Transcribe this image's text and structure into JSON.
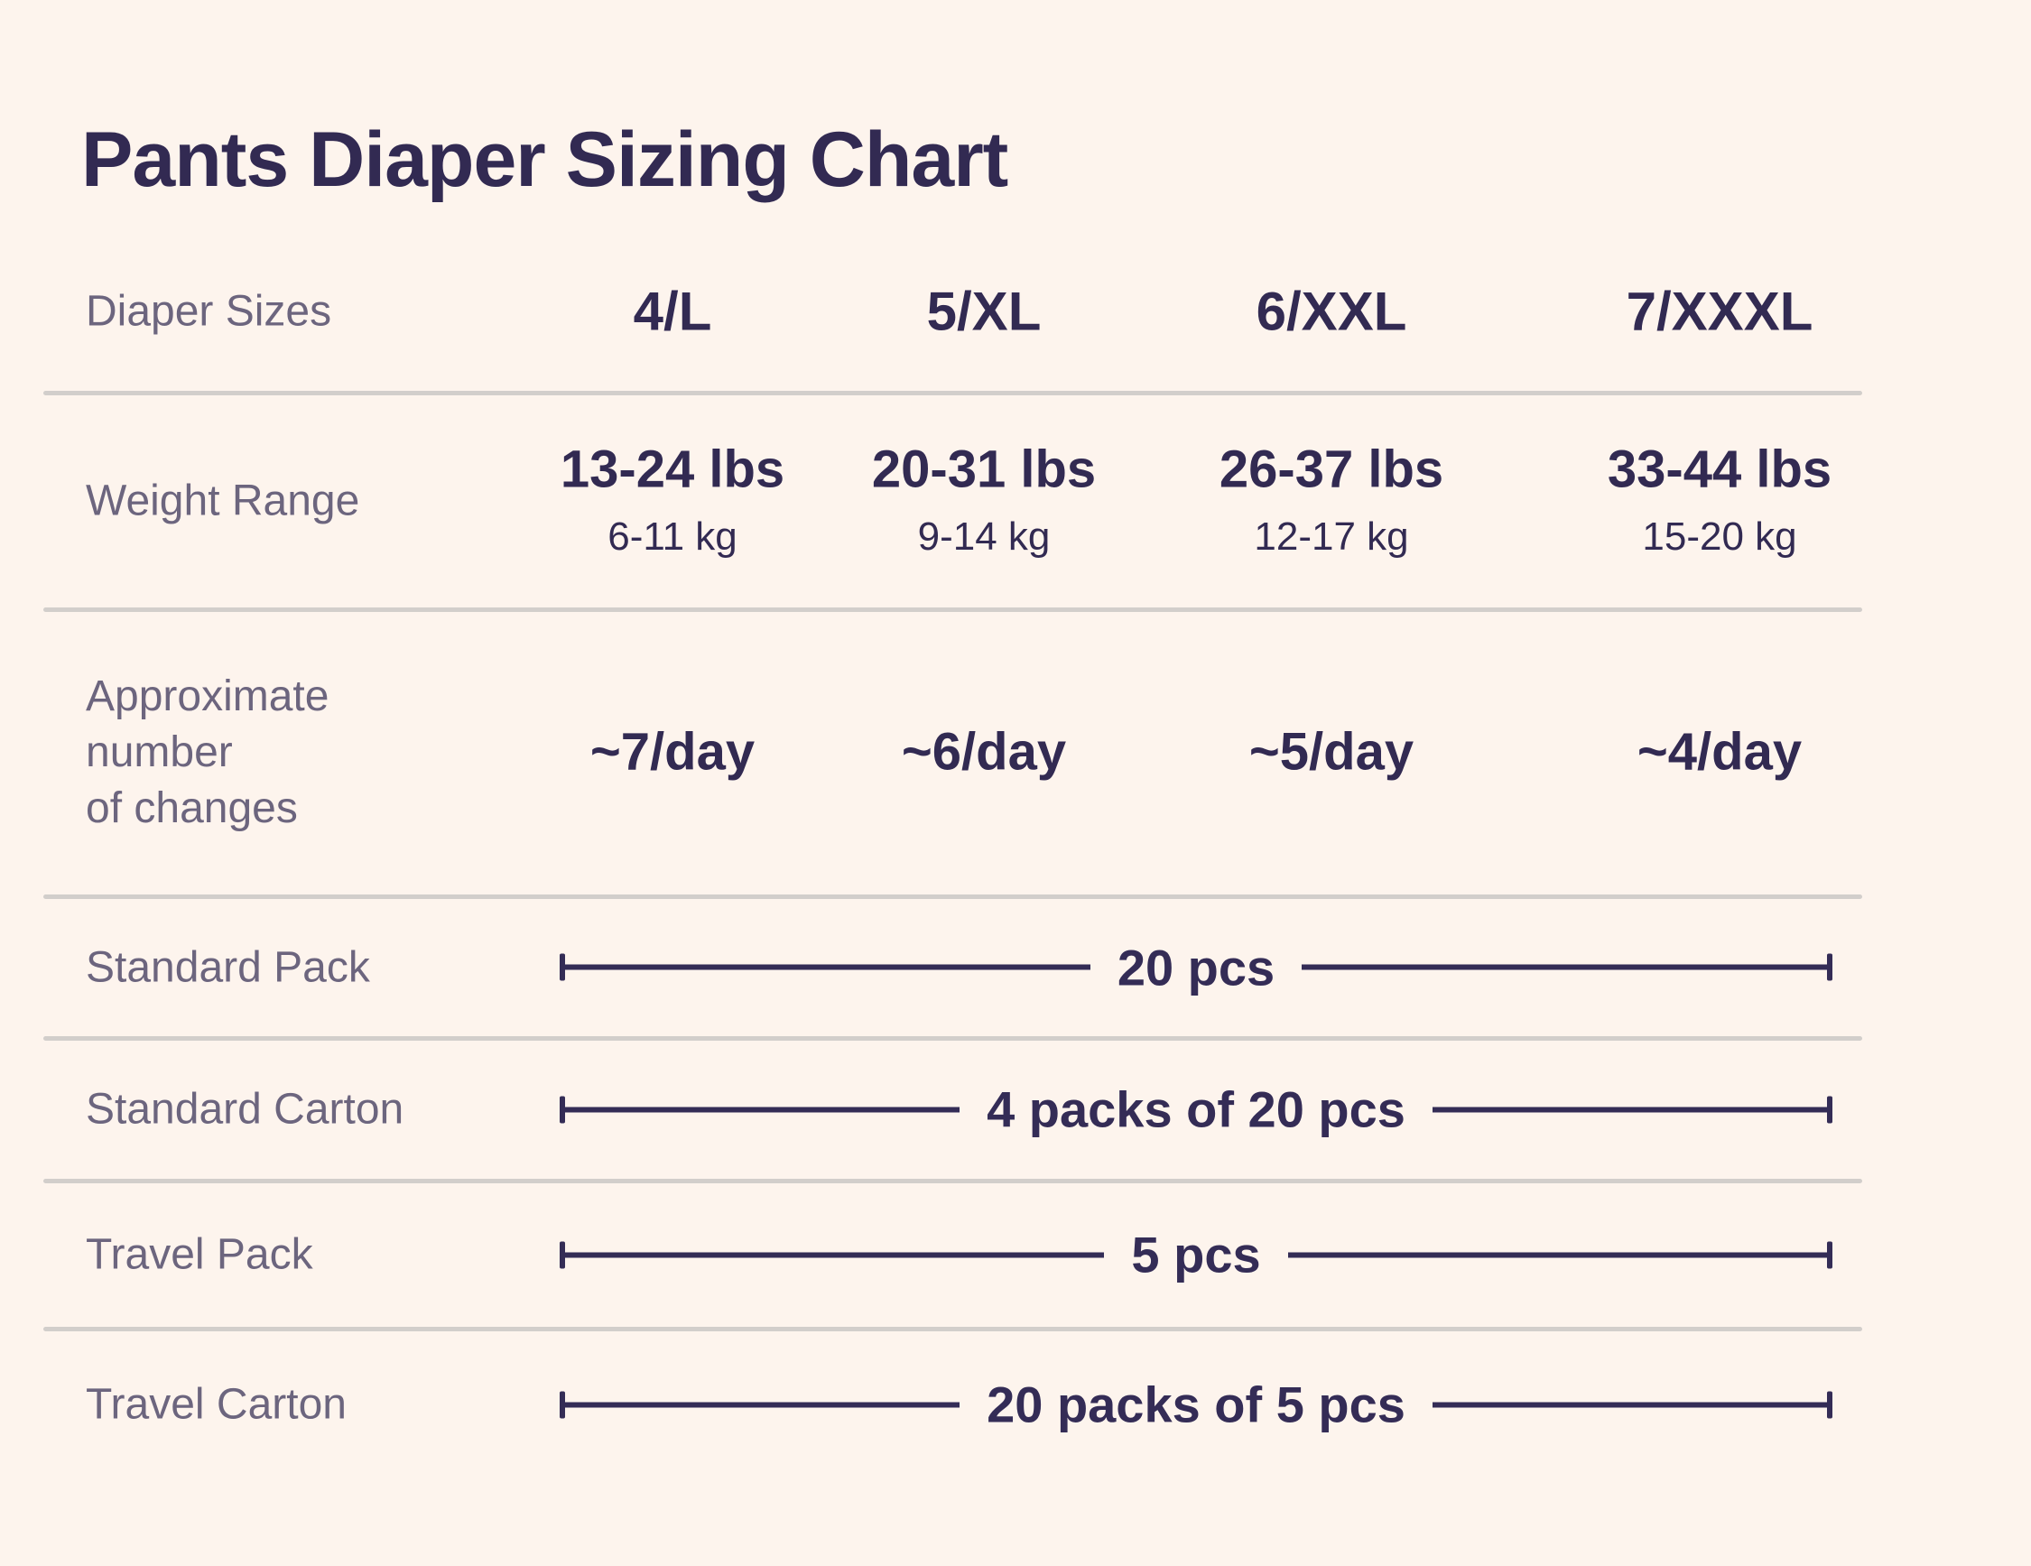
{
  "title": "Pants Diaper Sizing Chart",
  "colors": {
    "background": "#fdf4ed",
    "dark_text": "#322a52",
    "label_text": "#6c657e",
    "divider": "#d2cecb",
    "line": "#342c56"
  },
  "header": {
    "label": "Diaper Sizes",
    "columns": [
      "4/L",
      "5/XL",
      "6/XXL",
      "7/XXXL"
    ]
  },
  "weight": {
    "label": "Weight Range",
    "lbs": [
      "13-24 lbs",
      "20-31 lbs",
      "26-37 lbs",
      "33-44 lbs"
    ],
    "kg": [
      "6-11 kg",
      "9-14 kg",
      "12-17 kg",
      "15-20 kg"
    ]
  },
  "changes": {
    "label_lines": [
      "Approximate",
      "number",
      "of changes"
    ],
    "values": [
      "~7/day",
      "~6/day",
      "~5/day",
      "~4/day"
    ]
  },
  "packs": [
    {
      "label": "Standard Pack",
      "value": "20 pcs"
    },
    {
      "label": "Standard Carton",
      "value": "4 packs of 20 pcs"
    },
    {
      "label": "Travel Pack",
      "value": "5 pcs"
    },
    {
      "label": "Travel Carton",
      "value": "20 packs of 5 pcs"
    }
  ],
  "chart_data": {
    "type": "table",
    "title": "Pants Diaper Sizing Chart",
    "columns": [
      "4/L",
      "5/XL",
      "6/XXL",
      "7/XXXL"
    ],
    "rows": [
      {
        "label": "Weight Range (lbs)",
        "values": [
          "13-24 lbs",
          "20-31 lbs",
          "26-37 lbs",
          "33-44 lbs"
        ]
      },
      {
        "label": "Weight Range (kg)",
        "values": [
          "6-11 kg",
          "9-14 kg",
          "12-17 kg",
          "15-20 kg"
        ]
      },
      {
        "label": "Approximate number of changes",
        "values": [
          "~7/day",
          "~6/day",
          "~5/day",
          "~4/day"
        ]
      },
      {
        "label": "Standard Pack",
        "values": [
          "20 pcs"
        ],
        "spans_all_sizes": true
      },
      {
        "label": "Standard Carton",
        "values": [
          "4 packs of 20 pcs"
        ],
        "spans_all_sizes": true
      },
      {
        "label": "Travel Pack",
        "values": [
          "5 pcs"
        ],
        "spans_all_sizes": true
      },
      {
        "label": "Travel Carton",
        "values": [
          "20 packs of 5 pcs"
        ],
        "spans_all_sizes": true
      }
    ]
  }
}
